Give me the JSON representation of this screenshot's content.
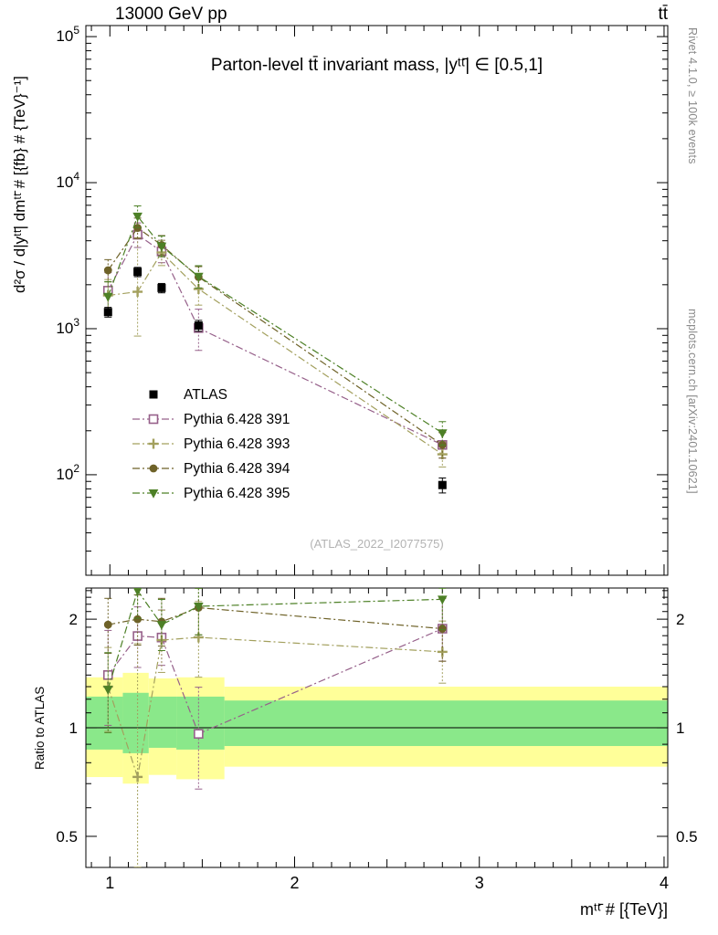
{
  "header": {
    "left_label": "13000 GeV pp",
    "right_label": "tt̄"
  },
  "side_notes": {
    "rivet": "Rivet 4.1.0, ≥ 100k events",
    "mcplots": "mcplots.cern.ch [arXiv:2401.10621]"
  },
  "watermark": "(ATLAS_2022_I2077575)",
  "chart_data": {
    "type": "scatter",
    "title": "Parton-level tt̄ invariant mass, |yᵗᵗ̄| ∈ [0.5,1]",
    "xlabel": "mᵗᵗ̄ # [{TeV}]",
    "ylabel": "d²σ / d|yᵗᵗ̄| dmᵗᵗ̄ # [{fb} # {TeV}⁻¹]",
    "ratio_ylabel": "Ratio to ATLAS",
    "xlim": [
      0.87,
      4.02
    ],
    "x_ticks": [
      1,
      2,
      3,
      4
    ],
    "main_ylim": [
      20.5,
      119000
    ],
    "main_y_ticks": [
      100,
      1000,
      10000,
      100000
    ],
    "ratio_ylim": [
      0.41,
      2.44
    ],
    "ratio_y_ticks": [
      0.5,
      1,
      2
    ],
    "x": [
      0.99,
      1.15,
      1.28,
      1.48,
      2.8
    ],
    "series": [
      {
        "name": "ATLAS",
        "marker": "square-filled",
        "color": "#000000",
        "line": "none",
        "y": [
          1300,
          2450,
          1900,
          1050,
          85
        ],
        "yerr_lo": [
          100,
          180,
          140,
          90,
          10
        ],
        "yerr_hi": [
          100,
          180,
          140,
          90,
          10
        ]
      },
      {
        "name": "Pythia 6.428 391",
        "marker": "square-open",
        "color": "#96608a",
        "line": "dashdot",
        "y": [
          1820,
          4400,
          3380,
          1010,
          160
        ],
        "yerr_lo": [
          500,
          800,
          550,
          300,
          30
        ],
        "yerr_hi": [
          600,
          900,
          650,
          350,
          35
        ]
      },
      {
        "name": "Pythia 6.428 393",
        "marker": "plus-open",
        "color": "#a3a05e",
        "line": "dashdot",
        "y": [
          1690,
          1790,
          3325,
          1870,
          138
        ],
        "yerr_lo": [
          420,
          900,
          620,
          420,
          25
        ],
        "yerr_hi": [
          480,
          2400,
          700,
          480,
          30
        ]
      },
      {
        "name": "Pythia 6.428 394",
        "marker": "circle-filled",
        "color": "#6e6228",
        "line": "dashdot",
        "y": [
          2510,
          4900,
          3740,
          2260,
          160
        ],
        "yerr_lo": [
          420,
          750,
          540,
          360,
          30
        ],
        "yerr_hi": [
          460,
          820,
          600,
          400,
          34
        ]
      },
      {
        "name": "Pythia 6.428 395",
        "marker": "triangle-down-filled",
        "color": "#4d8026",
        "line": "dashdot",
        "y": [
          1660,
          5880,
          3670,
          2280,
          193
        ],
        "yerr_lo": [
          400,
          950,
          560,
          380,
          34
        ],
        "yerr_hi": [
          440,
          1050,
          640,
          420,
          38
        ]
      }
    ],
    "legend": [
      "ATLAS",
      "Pythia 6.428 391",
      "Pythia 6.428 393",
      "Pythia 6.428 394",
      "Pythia 6.428 395"
    ],
    "ratio_reference": 1,
    "bands": [
      {
        "x0": 0.87,
        "x1": 1.07,
        "yellow": [
          0.73,
          1.38
        ],
        "green": [
          0.87,
          1.22
        ]
      },
      {
        "x0": 1.07,
        "x1": 1.21,
        "yellow": [
          0.7,
          1.42
        ],
        "green": [
          0.85,
          1.25
        ]
      },
      {
        "x0": 1.21,
        "x1": 1.36,
        "yellow": [
          0.74,
          1.37
        ],
        "green": [
          0.88,
          1.22
        ]
      },
      {
        "x0": 1.36,
        "x1": 1.62,
        "yellow": [
          0.72,
          1.38
        ],
        "green": [
          0.87,
          1.22
        ]
      },
      {
        "x0": 1.62,
        "x1": 4.02,
        "yellow": [
          0.78,
          1.3
        ],
        "green": [
          0.89,
          1.19
        ]
      }
    ],
    "band_colors": {
      "yellow": "#ffff99",
      "green": "#8ae88a"
    }
  }
}
